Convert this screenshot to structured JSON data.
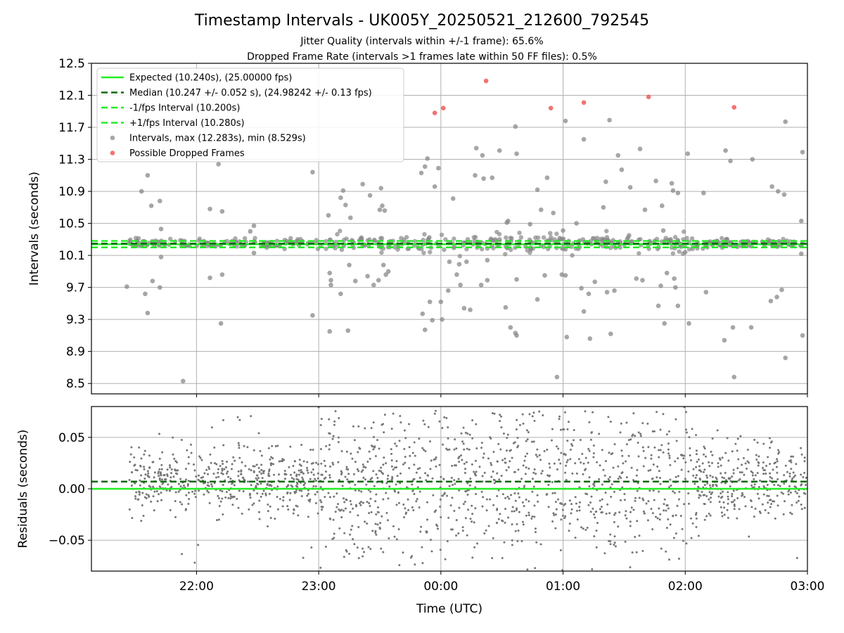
{
  "chart_data": [
    {
      "type": "scatter",
      "title": "Timestamp Intervals - UK005Y_20250521_212600_792545",
      "subtitle_1": "Jitter Quality (intervals within +/-1 frame): 65.6%",
      "subtitle_2": "Dropped Frame Rate (intervals >1 frames late within 50 FF files): 0.5%",
      "ylabel": "Intervals (seconds)",
      "xlabel": "",
      "x_ticks": [
        "22:00",
        "23:00",
        "00:00",
        "01:00",
        "02:00",
        "03:00"
      ],
      "x_tick_hours": [
        22,
        23,
        24,
        25,
        26,
        27
      ],
      "xlim_hours": [
        21.14,
        27.0
      ],
      "ylim": [
        8.37,
        12.5
      ],
      "y_ticks": [
        "8.5",
        "8.9",
        "9.3",
        "9.7",
        "10.1",
        "10.5",
        "10.9",
        "11.3",
        "11.7",
        "12.1",
        "12.5"
      ],
      "y_tick_values": [
        8.5,
        8.9,
        9.3,
        9.7,
        10.1,
        10.5,
        10.9,
        11.3,
        11.7,
        12.1,
        12.5
      ],
      "grid": true,
      "legend_position": "upper-left",
      "lines": [
        {
          "name": "Expected (10.240s), (25.00000 fps)",
          "y": 10.24,
          "color": "#22ee22",
          "style": "solid"
        },
        {
          "name": "Median (10.247 +/- 0.052 s), (24.98242 +/- 0.13 fps)",
          "y": 10.247,
          "color": "#0a6a0a",
          "style": "dashed"
        },
        {
          "name": "-1/fps Interval (10.200s)",
          "y": 10.2,
          "color": "#22ee22",
          "style": "dashed"
        },
        {
          "name": "+1/fps Interval (10.280s)",
          "y": 10.28,
          "color": "#22ee22",
          "style": "dashed"
        }
      ],
      "series": [
        {
          "name": "Intervals, max (12.283s), min (8.529s)",
          "color": "#888888",
          "points": [
            [
              21.43,
              9.71
            ],
            [
              21.55,
              10.9
            ],
            [
              21.58,
              9.62
            ],
            [
              21.6,
              9.38
            ],
            [
              21.6,
              11.1
            ],
            [
              21.63,
              10.72
            ],
            [
              21.64,
              9.78
            ],
            [
              21.7,
              10.78
            ],
            [
              21.71,
              10.43
            ],
            [
              21.71,
              10.08
            ],
            [
              21.7,
              9.7
            ],
            [
              21.89,
              8.53
            ],
            [
              22.11,
              9.82
            ],
            [
              22.11,
              10.68
            ],
            [
              22.18,
              11.24
            ],
            [
              22.2,
              9.25
            ],
            [
              22.21,
              10.65
            ],
            [
              22.21,
              9.86
            ],
            [
              22.47,
              10.13
            ],
            [
              22.44,
              10.4
            ],
            [
              22.47,
              10.47
            ],
            [
              22.95,
              11.14
            ],
            [
              22.95,
              9.35
            ],
            [
              23.08,
              10.6
            ],
            [
              23.09,
              9.88
            ],
            [
              23.09,
              9.15
            ],
            [
              23.1,
              9.73
            ],
            [
              23.1,
              9.79
            ],
            [
              23.18,
              10.82
            ],
            [
              23.18,
              9.62
            ],
            [
              23.2,
              10.91
            ],
            [
              23.22,
              10.73
            ],
            [
              23.26,
              10.57
            ],
            [
              23.24,
              9.16
            ],
            [
              23.25,
              9.98
            ],
            [
              23.3,
              9.78
            ],
            [
              23.36,
              10.99
            ],
            [
              23.4,
              9.84
            ],
            [
              23.42,
              10.85
            ],
            [
              23.45,
              9.73
            ],
            [
              23.49,
              9.79
            ],
            [
              23.5,
              10.67
            ],
            [
              23.51,
              10.94
            ],
            [
              23.52,
              10.72
            ],
            [
              23.54,
              10.66
            ],
            [
              23.53,
              9.98
            ],
            [
              23.55,
              9.86
            ],
            [
              23.57,
              9.9
            ],
            [
              23.84,
              11.13
            ],
            [
              23.85,
              9.37
            ],
            [
              23.87,
              11.21
            ],
            [
              23.87,
              9.17
            ],
            [
              23.89,
              11.31
            ],
            [
              23.91,
              9.52
            ],
            [
              23.93,
              9.29
            ],
            [
              23.95,
              10.96
            ],
            [
              23.98,
              11.19
            ],
            [
              24.01,
              9.3
            ],
            [
              24.0,
              9.52
            ],
            [
              24.06,
              9.66
            ],
            [
              24.07,
              10.02
            ],
            [
              24.1,
              10.81
            ],
            [
              24.13,
              9.86
            ],
            [
              24.16,
              9.73
            ],
            [
              24.15,
              9.99
            ],
            [
              24.19,
              9.44
            ],
            [
              24.21,
              10.02
            ],
            [
              24.24,
              9.42
            ],
            [
              24.28,
              11.1
            ],
            [
              24.29,
              11.44
            ],
            [
              24.33,
              9.73
            ],
            [
              24.34,
              11.35
            ],
            [
              24.35,
              11.06
            ],
            [
              24.38,
              9.79
            ],
            [
              24.38,
              10.04
            ],
            [
              24.42,
              11.07
            ],
            [
              24.48,
              11.41
            ],
            [
              24.48,
              10.3
            ],
            [
              24.53,
              9.45
            ],
            [
              24.54,
              10.51
            ],
            [
              24.55,
              10.53
            ],
            [
              24.57,
              9.2
            ],
            [
              24.61,
              9.13
            ],
            [
              24.62,
              9.1
            ],
            [
              24.61,
              11.71
            ],
            [
              24.62,
              11.37
            ],
            [
              24.62,
              9.8
            ],
            [
              24.73,
              10.49
            ],
            [
              24.79,
              9.55
            ],
            [
              24.79,
              10.92
            ],
            [
              24.82,
              10.67
            ],
            [
              24.85,
              9.85
            ],
            [
              24.87,
              11.07
            ],
            [
              24.92,
              10.63
            ],
            [
              24.95,
              8.58
            ],
            [
              24.99,
              9.86
            ],
            [
              25.0,
              10.41
            ],
            [
              25.02,
              11.78
            ],
            [
              25.02,
              9.85
            ],
            [
              25.03,
              9.08
            ],
            [
              25.11,
              10.5
            ],
            [
              25.15,
              9.69
            ],
            [
              25.17,
              11.55
            ],
            [
              25.17,
              9.4
            ],
            [
              25.21,
              9.62
            ],
            [
              25.26,
              9.77
            ],
            [
              25.22,
              9.06
            ],
            [
              25.35,
              11.02
            ],
            [
              25.33,
              10.7
            ],
            [
              25.36,
              9.64
            ],
            [
              25.38,
              11.79
            ],
            [
              25.39,
              9.12
            ],
            [
              25.42,
              9.66
            ],
            [
              25.45,
              11.35
            ],
            [
              25.48,
              11.17
            ],
            [
              25.54,
              10.35
            ],
            [
              25.55,
              10.95
            ],
            [
              25.6,
              9.81
            ],
            [
              25.63,
              11.43
            ],
            [
              25.65,
              9.79
            ],
            [
              25.67,
              10.67
            ],
            [
              25.76,
              11.03
            ],
            [
              25.78,
              9.47
            ],
            [
              25.8,
              9.72
            ],
            [
              25.81,
              10.72
            ],
            [
              25.82,
              10.41
            ],
            [
              25.83,
              9.25
            ],
            [
              25.85,
              9.88
            ],
            [
              25.89,
              11.0
            ],
            [
              25.91,
              9.81
            ],
            [
              25.9,
              10.91
            ],
            [
              25.92,
              9.7
            ],
            [
              25.94,
              9.47
            ],
            [
              25.94,
              10.88
            ],
            [
              26.0,
              10.14
            ],
            [
              26.02,
              11.37
            ],
            [
              26.03,
              9.25
            ],
            [
              26.15,
              10.88
            ],
            [
              26.17,
              9.64
            ],
            [
              26.32,
              9.04
            ],
            [
              26.33,
              11.41
            ],
            [
              26.39,
              9.2
            ],
            [
              26.37,
              11.28
            ],
            [
              26.4,
              8.58
            ],
            [
              26.55,
              11.3
            ],
            [
              26.54,
              9.2
            ],
            [
              26.7,
              9.53
            ],
            [
              26.71,
              10.96
            ],
            [
              26.75,
              9.58
            ],
            [
              26.76,
              10.9
            ],
            [
              26.79,
              9.67
            ],
            [
              26.81,
              10.86
            ],
            [
              26.82,
              8.82
            ],
            [
              26.82,
              11.77
            ],
            [
              26.95,
              10.53
            ],
            [
              26.95,
              10.12
            ],
            [
              26.96,
              9.1
            ],
            [
              26.96,
              11.39
            ]
          ]
        },
        {
          "name": "Possible Dropped Frames",
          "color": "#ee4444",
          "points": [
            [
              23.95,
              11.88
            ],
            [
              24.02,
              11.94
            ],
            [
              24.37,
              12.28
            ],
            [
              24.9,
              11.94
            ],
            [
              25.17,
              12.01
            ],
            [
              25.7,
              12.08
            ],
            [
              26.4,
              11.95
            ]
          ]
        }
      ]
    },
    {
      "type": "scatter",
      "title": "",
      "ylabel": "Residuals (seconds)",
      "xlabel": "Time (UTC)",
      "x_ticks": [
        "22:00",
        "23:00",
        "00:00",
        "01:00",
        "02:00",
        "03:00"
      ],
      "x_tick_hours": [
        22,
        23,
        24,
        25,
        26,
        27
      ],
      "xlim_hours": [
        21.14,
        27.0
      ],
      "ylim": [
        -0.08,
        0.08
      ],
      "y_ticks": [
        "0.05",
        "0.00",
        "−0.05"
      ],
      "y_tick_values": [
        0.05,
        0.0,
        -0.05
      ],
      "grid": true,
      "lines": [
        {
          "y": 0.0,
          "color": "#22ee22",
          "style": "solid"
        },
        {
          "y": 0.007,
          "color": "#0a6a0a",
          "style": "dashed"
        }
      ],
      "series": [
        {
          "color": "#777777",
          "distribution": "dense scatter of approx. 1800 residuals between -0.08 and 0.08 s, centred near 0.007 s; narrow spread 21:30-23:00 and 02:00-03:00, wide spread 23:00-02:00"
        }
      ]
    }
  ]
}
